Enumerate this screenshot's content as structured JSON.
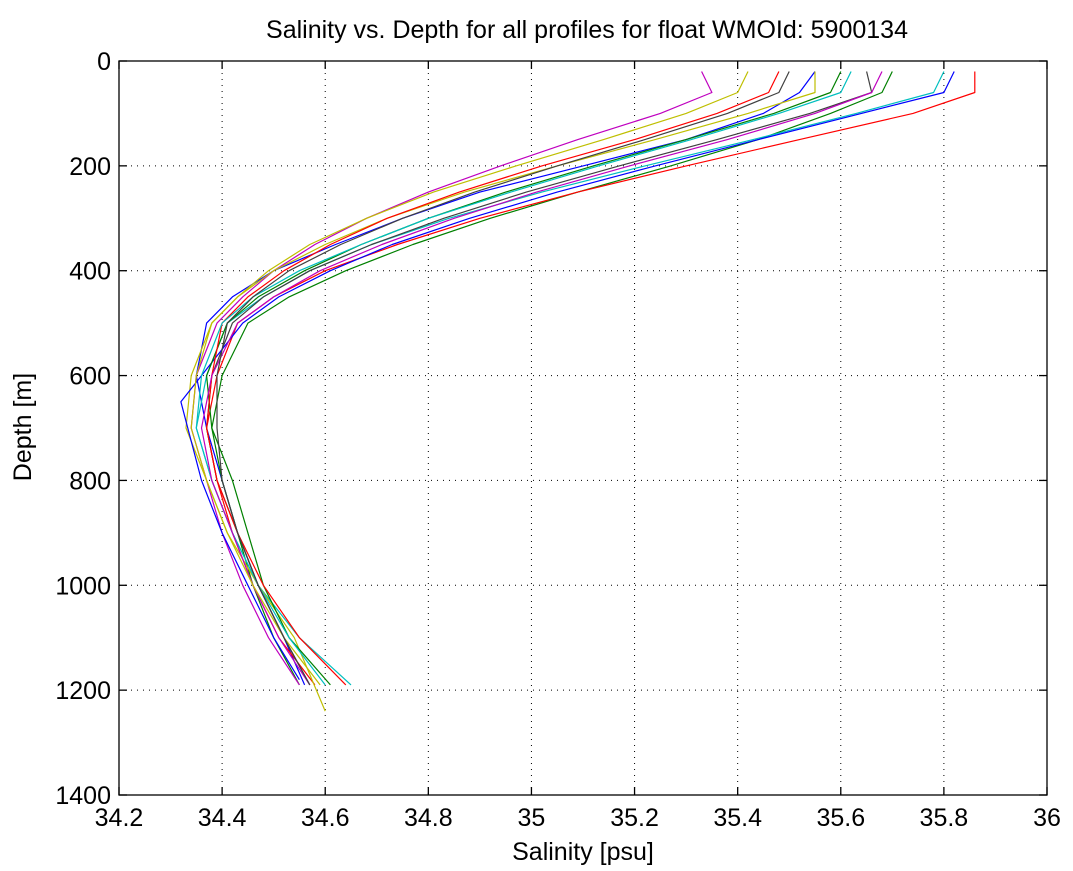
{
  "chart_data": {
    "type": "line",
    "title": "Salinity vs. Depth for all profiles for float WMOId: 5900134",
    "xlabel": "Salinity [psu]",
    "ylabel": "Depth [m]",
    "xlim": [
      34.2,
      36
    ],
    "ylim": [
      0,
      1400
    ],
    "y_reversed": true,
    "grid": true,
    "grid_style": "dotted",
    "x_ticks": [
      34.2,
      34.4,
      34.6,
      34.8,
      35,
      35.2,
      35.4,
      35.6,
      35.8,
      36
    ],
    "x_tick_labels": [
      "34.2",
      "34.4",
      "34.6",
      "34.8",
      "35",
      "35.2",
      "35.4",
      "35.6",
      "35.8",
      "36"
    ],
    "y_ticks": [
      0,
      200,
      400,
      600,
      800,
      1000,
      1200,
      1400
    ],
    "y_tick_labels": [
      "0",
      "200",
      "400",
      "600",
      "800",
      "1000",
      "1200",
      "1400"
    ],
    "colors": [
      "#0000ff",
      "#008000",
      "#ff0000",
      "#00bfbf",
      "#bf00bf",
      "#bfbf00",
      "#404040"
    ],
    "series": [
      {
        "color": "#0000ff",
        "x": [
          35.55,
          35.52,
          35.45,
          35.3,
          35.1,
          34.9,
          34.75,
          34.62,
          34.5,
          34.42,
          34.37,
          34.35,
          34.37,
          34.4,
          34.43,
          34.47,
          34.52,
          34.56
        ],
        "y": [
          20,
          60,
          100,
          150,
          200,
          250,
          300,
          350,
          400,
          450,
          500,
          600,
          700,
          800,
          900,
          1000,
          1100,
          1190
        ]
      },
      {
        "color": "#008000",
        "x": [
          35.7,
          35.68,
          35.58,
          35.44,
          35.27,
          35.09,
          34.92,
          34.77,
          34.64,
          34.53,
          34.45,
          34.4,
          34.38,
          34.4,
          34.43,
          34.46,
          34.5,
          34.55
        ],
        "y": [
          20,
          60,
          100,
          150,
          200,
          250,
          300,
          350,
          400,
          450,
          500,
          600,
          700,
          800,
          900,
          1000,
          1100,
          1190
        ]
      },
      {
        "color": "#ff0000",
        "x": [
          35.86,
          35.86,
          35.74,
          35.52,
          35.3,
          35.09,
          34.9,
          34.74,
          34.6,
          34.5,
          34.43,
          34.39,
          34.37,
          34.39,
          34.42,
          34.46,
          34.51,
          34.58
        ],
        "y": [
          20,
          60,
          100,
          150,
          200,
          250,
          300,
          350,
          400,
          450,
          500,
          600,
          700,
          800,
          900,
          1000,
          1100,
          1190
        ]
      },
      {
        "color": "#00bfbf",
        "x": [
          35.8,
          35.78,
          35.63,
          35.43,
          35.22,
          35.02,
          34.84,
          34.69,
          34.57,
          34.48,
          34.41,
          34.37,
          34.35,
          34.38,
          34.42,
          34.47,
          34.55,
          34.65
        ],
        "y": [
          20,
          60,
          100,
          150,
          200,
          250,
          300,
          350,
          400,
          450,
          500,
          600,
          700,
          800,
          900,
          1000,
          1100,
          1190
        ]
      },
      {
        "color": "#bf00bf",
        "x": [
          35.33,
          35.35,
          35.25,
          35.09,
          34.94,
          34.8,
          34.68,
          34.58,
          34.5,
          34.44,
          34.39,
          34.35,
          34.34,
          34.37,
          34.4,
          34.44,
          34.49,
          34.55
        ],
        "y": [
          20,
          60,
          100,
          150,
          200,
          250,
          300,
          350,
          400,
          450,
          500,
          600,
          700,
          800,
          900,
          1000,
          1100,
          1190
        ]
      },
      {
        "color": "#bfbf00",
        "x": [
          35.55,
          35.55,
          35.42,
          35.24,
          35.05,
          34.87,
          34.72,
          34.6,
          34.5,
          34.43,
          34.38,
          34.34,
          34.33,
          34.37,
          34.41,
          34.47,
          34.54,
          34.6
        ],
        "y": [
          20,
          60,
          100,
          150,
          200,
          250,
          300,
          350,
          400,
          450,
          500,
          600,
          700,
          800,
          900,
          1000,
          1100,
          1240
        ]
      },
      {
        "color": "#404040",
        "x": [
          35.65,
          35.66,
          35.54,
          35.36,
          35.17,
          34.99,
          34.83,
          34.69,
          34.57,
          34.48,
          34.42,
          34.38,
          34.37,
          34.39,
          34.43,
          34.47,
          34.52,
          34.57
        ],
        "y": [
          20,
          60,
          100,
          150,
          200,
          250,
          300,
          350,
          400,
          450,
          500,
          600,
          700,
          800,
          900,
          1000,
          1100,
          1190
        ]
      },
      {
        "color": "#0000ff",
        "x": [
          35.82,
          35.8,
          35.64,
          35.44,
          35.24,
          35.05,
          34.88,
          34.73,
          34.61,
          34.51,
          34.44,
          34.36,
          34.32,
          34.36,
          34.4,
          34.45,
          34.5,
          34.55
        ],
        "y": [
          20,
          60,
          100,
          150,
          200,
          250,
          300,
          350,
          400,
          450,
          500,
          600,
          650,
          800,
          900,
          1000,
          1100,
          1180
        ]
      },
      {
        "color": "#008000",
        "x": [
          35.6,
          35.58,
          35.47,
          35.3,
          35.12,
          34.95,
          34.8,
          34.67,
          34.56,
          34.47,
          34.41,
          34.37,
          34.38,
          34.42,
          34.45,
          34.48,
          34.53,
          34.61
        ],
        "y": [
          20,
          60,
          100,
          150,
          200,
          250,
          300,
          350,
          400,
          450,
          500,
          600,
          700,
          800,
          900,
          1000,
          1100,
          1190
        ]
      },
      {
        "color": "#ff0000",
        "x": [
          35.48,
          35.46,
          35.36,
          35.2,
          35.02,
          34.86,
          34.72,
          34.61,
          34.52,
          34.45,
          34.4,
          34.38,
          34.37,
          34.39,
          34.43,
          34.48,
          34.55,
          34.64
        ],
        "y": [
          20,
          60,
          100,
          150,
          200,
          250,
          300,
          350,
          400,
          450,
          500,
          600,
          700,
          800,
          900,
          1000,
          1100,
          1190
        ]
      },
      {
        "color": "#00bfbf",
        "x": [
          35.62,
          35.6,
          35.48,
          35.31,
          35.13,
          34.96,
          34.8,
          34.67,
          34.55,
          34.46,
          34.4,
          34.36,
          34.35,
          34.38,
          34.42,
          34.47,
          34.53,
          34.6
        ],
        "y": [
          20,
          60,
          100,
          150,
          200,
          250,
          300,
          350,
          400,
          450,
          500,
          600,
          700,
          800,
          900,
          1000,
          1100,
          1190
        ]
      },
      {
        "color": "#bf00bf",
        "x": [
          35.68,
          35.66,
          35.55,
          35.38,
          35.19,
          35.01,
          34.85,
          34.71,
          34.59,
          34.5,
          34.43,
          34.38,
          34.36,
          34.38,
          34.42,
          34.46,
          34.51,
          34.57
        ],
        "y": [
          20,
          60,
          100,
          150,
          200,
          250,
          300,
          350,
          400,
          450,
          500,
          600,
          700,
          800,
          900,
          1000,
          1100,
          1190
        ]
      },
      {
        "color": "#bfbf00",
        "x": [
          35.42,
          35.4,
          35.3,
          35.14,
          34.97,
          34.81,
          34.68,
          34.57,
          34.49,
          34.43,
          34.38,
          34.35,
          34.34,
          34.37,
          34.41,
          34.46,
          34.52,
          34.59
        ],
        "y": [
          20,
          60,
          100,
          150,
          200,
          250,
          300,
          350,
          400,
          450,
          500,
          600,
          700,
          800,
          900,
          1000,
          1100,
          1190
        ]
      },
      {
        "color": "#404040",
        "x": [
          35.5,
          35.48,
          35.38,
          35.22,
          35.05,
          34.89,
          34.75,
          34.63,
          34.53,
          34.46,
          34.41,
          34.39,
          34.39,
          34.4,
          34.43,
          34.47,
          34.52,
          34.57
        ],
        "y": [
          20,
          60,
          100,
          150,
          200,
          250,
          300,
          350,
          400,
          450,
          500,
          600,
          700,
          800,
          900,
          1000,
          1100,
          1190
        ]
      }
    ]
  }
}
